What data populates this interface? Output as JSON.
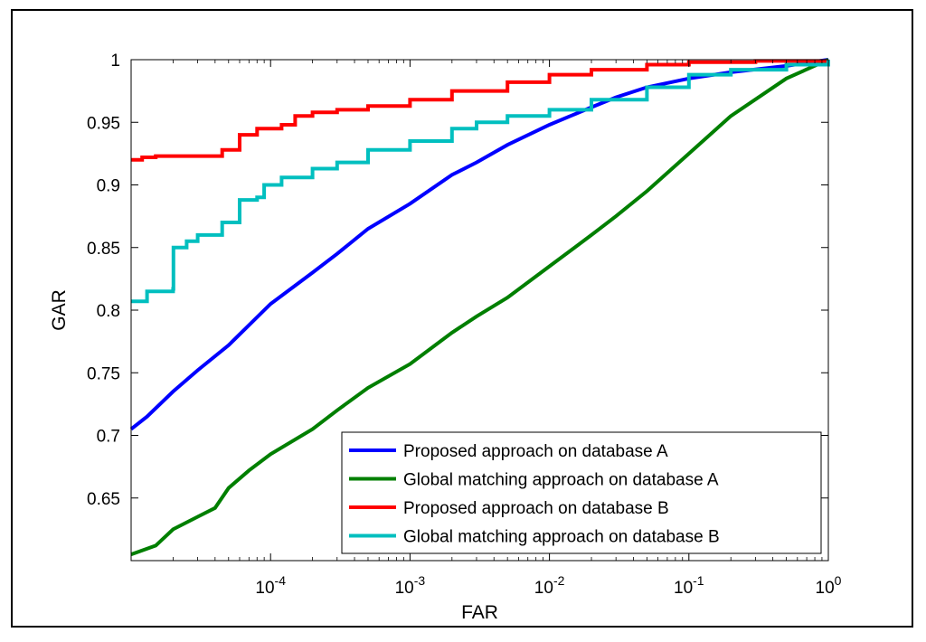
{
  "chart_data": {
    "type": "line",
    "title": "",
    "xlabel": "FAR",
    "ylabel": "GAR",
    "xscale": "log",
    "xlim": [
      1e-05,
      1
    ],
    "ylim": [
      0.6,
      1
    ],
    "x_ticks": [
      {
        "value": 0.0001,
        "base": "10",
        "exp": "-4"
      },
      {
        "value": 0.001,
        "base": "10",
        "exp": "-3"
      },
      {
        "value": 0.01,
        "base": "10",
        "exp": "-2"
      },
      {
        "value": 0.1,
        "base": "10",
        "exp": "-1"
      },
      {
        "value": 1,
        "base": "10",
        "exp": "0"
      }
    ],
    "y_ticks": [
      {
        "value": 0.65,
        "label": "0.65"
      },
      {
        "value": 0.7,
        "label": "0.7"
      },
      {
        "value": 0.75,
        "label": "0.75"
      },
      {
        "value": 0.8,
        "label": "0.8"
      },
      {
        "value": 0.85,
        "label": "0.85"
      },
      {
        "value": 0.9,
        "label": "0.9"
      },
      {
        "value": 0.95,
        "label": "0.95"
      },
      {
        "value": 1,
        "label": "1"
      }
    ],
    "grid": false,
    "legend_position": "bottom-right",
    "series": [
      {
        "name": "Proposed approach on database A",
        "color": "#0000ff",
        "step": false,
        "points": [
          [
            1e-05,
            0.705
          ],
          [
            1.3e-05,
            0.715
          ],
          [
            2e-05,
            0.735
          ],
          [
            3e-05,
            0.752
          ],
          [
            5e-05,
            0.772
          ],
          [
            0.0001,
            0.805
          ],
          [
            0.0002,
            0.83
          ],
          [
            0.0003,
            0.845
          ],
          [
            0.0005,
            0.865
          ],
          [
            0.001,
            0.885
          ],
          [
            0.002,
            0.908
          ],
          [
            0.003,
            0.918
          ],
          [
            0.005,
            0.932
          ],
          [
            0.01,
            0.948
          ],
          [
            0.02,
            0.962
          ],
          [
            0.03,
            0.97
          ],
          [
            0.05,
            0.978
          ],
          [
            0.1,
            0.985
          ],
          [
            0.2,
            0.99
          ],
          [
            0.5,
            0.995
          ],
          [
            1,
            1
          ]
        ]
      },
      {
        "name": "Global matching approach on database A",
        "color": "#007f00",
        "step": false,
        "points": [
          [
            1e-05,
            0.605
          ],
          [
            1.5e-05,
            0.612
          ],
          [
            2e-05,
            0.625
          ],
          [
            3e-05,
            0.635
          ],
          [
            4e-05,
            0.642
          ],
          [
            5e-05,
            0.658
          ],
          [
            7e-05,
            0.672
          ],
          [
            0.0001,
            0.685
          ],
          [
            0.0002,
            0.705
          ],
          [
            0.0003,
            0.72
          ],
          [
            0.0005,
            0.738
          ],
          [
            0.001,
            0.757
          ],
          [
            0.002,
            0.782
          ],
          [
            0.003,
            0.795
          ],
          [
            0.005,
            0.81
          ],
          [
            0.01,
            0.835
          ],
          [
            0.02,
            0.86
          ],
          [
            0.03,
            0.875
          ],
          [
            0.05,
            0.895
          ],
          [
            0.1,
            0.925
          ],
          [
            0.2,
            0.955
          ],
          [
            0.5,
            0.985
          ],
          [
            1,
            1
          ]
        ]
      },
      {
        "name": "Proposed approach on database B",
        "color": "#ff0000",
        "step": true,
        "points": [
          [
            1e-05,
            0.92
          ],
          [
            1.2e-05,
            0.922
          ],
          [
            1.5e-05,
            0.923
          ],
          [
            3.5e-05,
            0.923
          ],
          [
            4.5e-05,
            0.928
          ],
          [
            6e-05,
            0.94
          ],
          [
            8e-05,
            0.945
          ],
          [
            0.00012,
            0.948
          ],
          [
            0.00015,
            0.955
          ],
          [
            0.0002,
            0.958
          ],
          [
            0.0003,
            0.96
          ],
          [
            0.0005,
            0.963
          ],
          [
            0.001,
            0.968
          ],
          [
            0.002,
            0.975
          ],
          [
            0.005,
            0.982
          ],
          [
            0.01,
            0.988
          ],
          [
            0.02,
            0.992
          ],
          [
            0.05,
            0.996
          ],
          [
            0.1,
            0.998
          ],
          [
            0.3,
            0.999
          ],
          [
            1,
            1
          ]
        ]
      },
      {
        "name": "Global matching approach on database B",
        "color": "#00bfbf",
        "step": true,
        "points": [
          [
            1e-05,
            0.807
          ],
          [
            1.3e-05,
            0.815
          ],
          [
            2e-05,
            0.817
          ],
          [
            2.01e-05,
            0.85
          ],
          [
            2.5e-05,
            0.855
          ],
          [
            3e-05,
            0.86
          ],
          [
            4.5e-05,
            0.87
          ],
          [
            6e-05,
            0.888
          ],
          [
            8e-05,
            0.89
          ],
          [
            9e-05,
            0.9
          ],
          [
            0.00012,
            0.906
          ],
          [
            0.0002,
            0.913
          ],
          [
            0.0003,
            0.918
          ],
          [
            0.0005,
            0.928
          ],
          [
            0.001,
            0.935
          ],
          [
            0.002,
            0.945
          ],
          [
            0.003,
            0.95
          ],
          [
            0.005,
            0.955
          ],
          [
            0.01,
            0.96
          ],
          [
            0.02,
            0.968
          ],
          [
            0.05,
            0.978
          ],
          [
            0.1,
            0.988
          ],
          [
            0.2,
            0.992
          ],
          [
            0.5,
            0.996
          ],
          [
            1,
            1
          ]
        ]
      }
    ]
  }
}
